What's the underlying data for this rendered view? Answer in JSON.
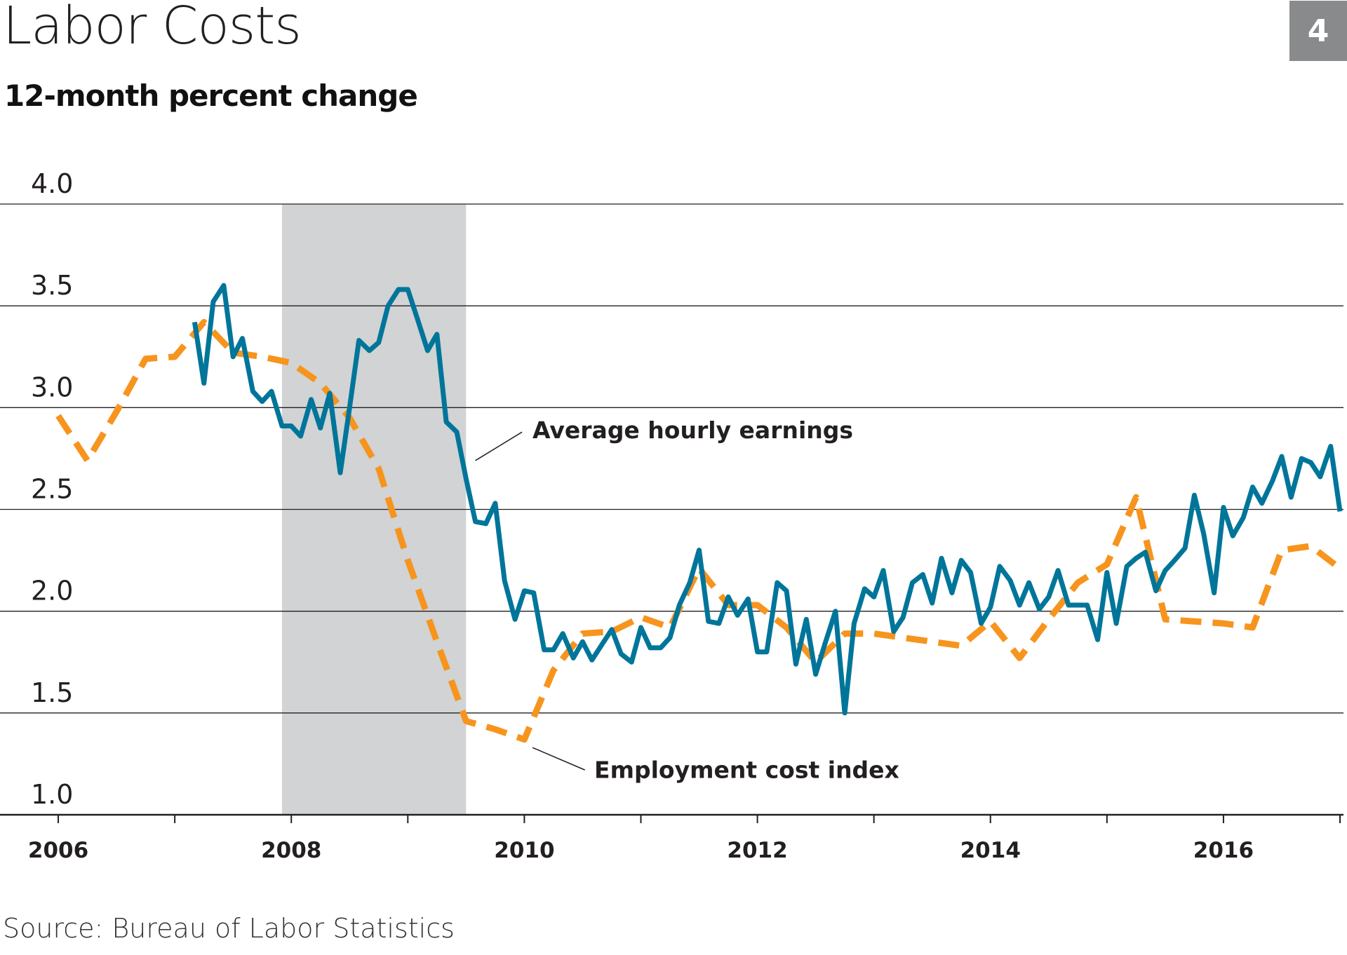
{
  "header": {
    "title": "Labor Costs",
    "subtitle": "12-month percent change",
    "badge": "4"
  },
  "footer": {
    "source": "Source: Bureau of Labor Statistics"
  },
  "colors": {
    "ahe": "#00759a",
    "eci": "#f7941d",
    "recession": "#d1d3d4",
    "grid": "#231f20"
  },
  "chart_data": {
    "type": "line",
    "title": "Labor Costs",
    "subtitle": "12-month percent change",
    "xlabel": "",
    "ylabel": "",
    "xlim": [
      2005.5,
      2017.03
    ],
    "ylim": [
      1.0,
      4.0
    ],
    "yticks": [
      "1.0",
      "1.5",
      "2.0",
      "2.5",
      "3.0",
      "3.5",
      "4.0"
    ],
    "xticks": [
      "2006",
      "2008",
      "2010",
      "2012",
      "2014",
      "2016"
    ],
    "grid": true,
    "recession": {
      "start": 2007.92,
      "end": 2009.5
    },
    "series": [
      {
        "name": "Average hourly earnings",
        "style": "solid",
        "x": [
          2007.17,
          2007.25,
          2007.33,
          2007.42,
          2007.5,
          2007.58,
          2007.67,
          2007.75,
          2007.83,
          2007.92,
          2008.0,
          2008.08,
          2008.17,
          2008.25,
          2008.33,
          2008.42,
          2008.5,
          2008.58,
          2008.67,
          2008.75,
          2008.83,
          2008.92,
          2009.0,
          2009.08,
          2009.17,
          2009.25,
          2009.33,
          2009.42,
          2009.5,
          2009.58,
          2009.67,
          2009.75,
          2009.83,
          2009.92,
          2010.0,
          2010.08,
          2010.17,
          2010.25,
          2010.33,
          2010.42,
          2010.5,
          2010.58,
          2010.67,
          2010.75,
          2010.83,
          2010.92,
          2011.0,
          2011.08,
          2011.17,
          2011.25,
          2011.33,
          2011.42,
          2011.5,
          2011.58,
          2011.67,
          2011.75,
          2011.83,
          2011.92,
          2012.0,
          2012.08,
          2012.17,
          2012.25,
          2012.33,
          2012.42,
          2012.5,
          2012.58,
          2012.67,
          2012.75,
          2012.83,
          2012.92,
          2013.0,
          2013.08,
          2013.17,
          2013.25,
          2013.33,
          2013.42,
          2013.5,
          2013.58,
          2013.67,
          2013.75,
          2013.83,
          2013.92,
          2014.0,
          2014.08,
          2014.17,
          2014.25,
          2014.33,
          2014.42,
          2014.5,
          2014.58,
          2014.67,
          2014.75,
          2014.83,
          2014.92,
          2015.0,
          2015.08,
          2015.17,
          2015.25,
          2015.33,
          2015.42,
          2015.5,
          2015.58,
          2015.67,
          2015.75,
          2015.83,
          2015.92,
          2016.0,
          2016.08,
          2016.17,
          2016.25,
          2016.33,
          2016.42,
          2016.5,
          2016.58,
          2016.67,
          2016.75,
          2016.83,
          2016.92,
          2017.0
        ],
        "values": [
          3.42,
          3.12,
          3.52,
          3.6,
          3.25,
          3.34,
          3.08,
          3.03,
          3.08,
          2.91,
          2.91,
          2.86,
          3.04,
          2.9,
          3.07,
          2.68,
          3.0,
          3.33,
          3.28,
          3.32,
          3.5,
          3.58,
          3.58,
          3.44,
          3.28,
          3.36,
          2.93,
          2.88,
          2.65,
          2.44,
          2.43,
          2.53,
          2.15,
          1.96,
          2.1,
          2.09,
          1.81,
          1.81,
          1.89,
          1.77,
          1.85,
          1.76,
          1.84,
          1.91,
          1.79,
          1.75,
          1.92,
          1.82,
          1.82,
          1.87,
          2.03,
          2.14,
          2.3,
          1.95,
          1.94,
          2.07,
          1.98,
          2.06,
          1.8,
          1.8,
          2.14,
          2.1,
          1.74,
          1.96,
          1.69,
          1.84,
          2.0,
          1.5,
          1.94,
          2.11,
          2.07,
          2.2,
          1.9,
          1.97,
          2.14,
          2.18,
          2.04,
          2.26,
          2.09,
          2.25,
          2.19,
          1.94,
          2.02,
          2.22,
          2.15,
          2.03,
          2.14,
          2.01,
          2.07,
          2.2,
          2.03,
          2.03,
          2.03,
          1.86,
          2.19,
          1.94,
          2.22,
          2.26,
          2.29,
          2.1,
          2.2,
          2.25,
          2.31,
          2.57,
          2.38,
          2.09,
          2.51,
          2.37,
          2.46,
          2.61,
          2.53,
          2.64,
          2.76,
          2.56,
          2.75,
          2.73,
          2.66,
          2.81,
          2.49
        ]
      },
      {
        "name": "Employment cost index",
        "style": "dashed",
        "x": [
          2006.0,
          2006.25,
          2006.5,
          2006.75,
          2007.0,
          2007.25,
          2007.5,
          2007.75,
          2008.0,
          2008.25,
          2008.5,
          2008.75,
          2009.0,
          2009.25,
          2009.5,
          2009.75,
          2010.0,
          2010.25,
          2010.5,
          2010.75,
          2011.0,
          2011.25,
          2011.5,
          2011.75,
          2012.0,
          2012.25,
          2012.5,
          2012.75,
          2013.0,
          2013.25,
          2013.5,
          2013.75,
          2014.0,
          2014.25,
          2014.5,
          2014.75,
          2015.0,
          2015.25,
          2015.5,
          2015.75,
          2016.0,
          2016.25,
          2016.5,
          2016.75,
          2017.0
        ],
        "values": [
          2.96,
          2.74,
          2.98,
          3.24,
          3.25,
          3.42,
          3.27,
          3.25,
          3.22,
          3.12,
          2.95,
          2.7,
          2.25,
          1.85,
          1.46,
          1.42,
          1.37,
          1.71,
          1.89,
          1.9,
          1.97,
          1.92,
          2.21,
          2.03,
          2.03,
          1.92,
          1.75,
          1.89,
          1.89,
          1.87,
          1.85,
          1.83,
          1.95,
          1.77,
          1.96,
          2.14,
          2.23,
          2.56,
          1.96,
          1.95,
          1.94,
          1.92,
          2.3,
          2.32,
          2.21
        ]
      }
    ],
    "annotations": [
      {
        "text": "Average hourly earnings",
        "series": "Average hourly earnings"
      },
      {
        "text": "Employment cost index",
        "series": "Employment cost index"
      }
    ]
  }
}
